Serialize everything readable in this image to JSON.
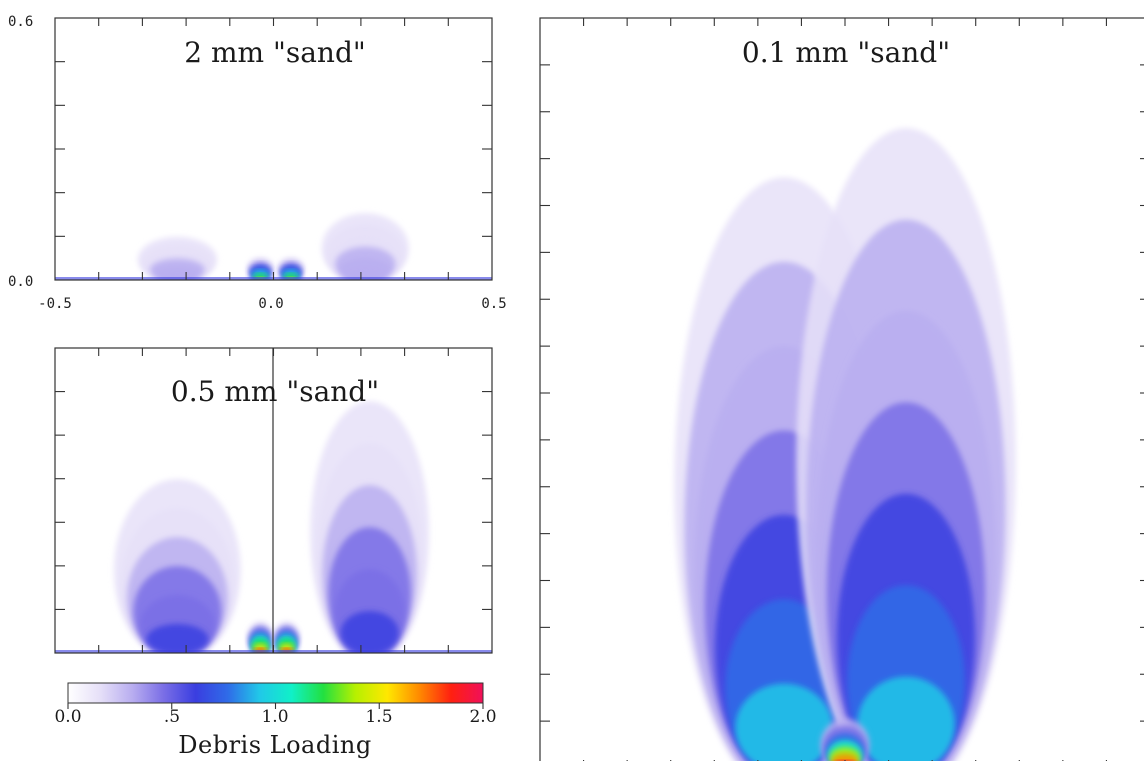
{
  "chart_data": [
    {
      "type": "heatmap",
      "title": "2 mm \"sand\"",
      "xlim": [
        -0.5,
        0.5
      ],
      "ylim": [
        0.0,
        0.6
      ],
      "x_tick_labels": [
        "-0.5",
        "0.0",
        "0.5"
      ],
      "y_tick_labels": [
        "0.0",
        "0.6"
      ],
      "plumes": [
        {
          "x_center": -0.22,
          "half_width": 0.1,
          "height": 0.11,
          "peak": 0.35
        },
        {
          "x_center": 0.21,
          "half_width": 0.11,
          "height": 0.17,
          "peak": 0.35
        },
        {
          "x_center": -0.03,
          "half_width": 0.03,
          "height": 0.05,
          "peak": 1.4
        },
        {
          "x_center": 0.04,
          "half_width": 0.03,
          "height": 0.05,
          "peak": 1.4
        }
      ]
    },
    {
      "type": "heatmap",
      "title": "0.5 mm \"sand\"",
      "xlim": [
        -0.5,
        0.5
      ],
      "ylim": [
        0.0,
        0.6
      ],
      "plumes": [
        {
          "x_center": -0.22,
          "half_width": 0.16,
          "height": 0.38,
          "peak": 0.55
        },
        {
          "x_center": 0.22,
          "half_width": 0.15,
          "height": 0.55,
          "peak": 0.55
        },
        {
          "x_center": -0.03,
          "half_width": 0.03,
          "height": 0.06,
          "peak": 1.8
        },
        {
          "x_center": 0.03,
          "half_width": 0.03,
          "height": 0.06,
          "peak": 1.8
        }
      ]
    },
    {
      "type": "heatmap",
      "title": "0.1 mm \"sand\"",
      "xlim": [
        -0.5,
        0.5
      ],
      "ylim": [
        0.0,
        1.6
      ],
      "plumes": [
        {
          "x_center": -0.1,
          "half_width": 0.18,
          "height": 1.2,
          "peak": 0.9
        },
        {
          "x_center": 0.1,
          "half_width": 0.18,
          "height": 1.3,
          "peak": 0.9
        },
        {
          "x_center": 0.0,
          "half_width": 0.04,
          "height": 0.1,
          "peak": 2.0
        }
      ]
    }
  ],
  "colorbar": {
    "title": "Debris Loading",
    "range": [
      0.0,
      2.0
    ],
    "tick_labels": [
      "0.0",
      ".5",
      "1.0",
      "1.5",
      "2.0"
    ],
    "tick_values": [
      0.0,
      0.5,
      1.0,
      1.5,
      2.0
    ],
    "colors": [
      "#ffffff",
      "#e6e0f8",
      "#b9aef0",
      "#7a6ee6",
      "#3a3ee0",
      "#2f6be8",
      "#21c8e8",
      "#10f0c8",
      "#22e040",
      "#b6f000",
      "#ffe800",
      "#ff8a00",
      "#ff2010",
      "#f0105a"
    ]
  }
}
